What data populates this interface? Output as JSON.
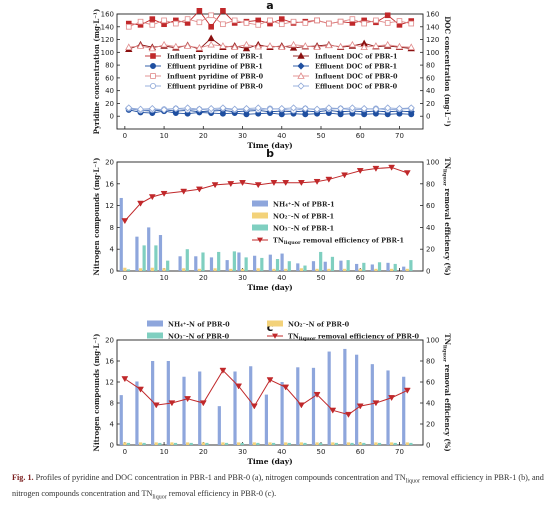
{
  "figure": {
    "caption_label": "Fig. 1.",
    "caption_text_1": "Profiles of pyridine and DOC concentration in PBR-1 and PBR-0 (a), nitrogen compounds concentration and TN",
    "caption_sub_1": "liquor",
    "caption_text_2": "removal efficiency in PBR-1 (b), and nitrogen compounds concentration and TN",
    "caption_sub_2": "liquor",
    "caption_text_3": "removal efficiency in PBR-0 (c)."
  },
  "chart_data": [
    {
      "panel": "a",
      "type": "line",
      "ylabel": "Pyridine concentration (mg·L⁻¹)",
      "y2label": "DOC concentration (mg·L⁻¹)",
      "xlabel": "Time (day)",
      "xlim": [
        -2,
        76
      ],
      "xticks": [
        0,
        10,
        20,
        30,
        40,
        50,
        60,
        70
      ],
      "ylim": [
        -20,
        160
      ],
      "yticks": [
        0,
        20,
        40,
        60,
        80,
        100,
        120,
        140,
        160
      ],
      "y2lim": [
        -20,
        160
      ],
      "y2ticks": [
        0,
        20,
        40,
        60,
        80,
        100,
        120,
        140,
        160
      ],
      "x": [
        1,
        4,
        7,
        10,
        13,
        16,
        19,
        22,
        25,
        28,
        31,
        34,
        37,
        40,
        43,
        46,
        49,
        52,
        55,
        58,
        61,
        64,
        67,
        70,
        73
      ],
      "series": [
        {
          "name": "Influent pyridine of PBR-1",
          "color": "#c0282a",
          "marker": "square",
          "filled": true,
          "axis": "left",
          "values": [
            145,
            143,
            152,
            144,
            150,
            146,
            165,
            140,
            165,
            146,
            148,
            150,
            145,
            152,
            146,
            148,
            150,
            145,
            148,
            146,
            150,
            147,
            158,
            143,
            149
          ]
        },
        {
          "name": "Influent DOC of PBR-1",
          "color": "#8b1010",
          "marker": "triangle",
          "filled": true,
          "axis": "right",
          "values": [
            105,
            112,
            108,
            110,
            107,
            111,
            105,
            122,
            108,
            110,
            106,
            112,
            108,
            110,
            107,
            109,
            110,
            112,
            108,
            110,
            114,
            109,
            110,
            108,
            106
          ]
        },
        {
          "name": "Effluent pyridine of PBR-1",
          "color": "#1f4fa0",
          "marker": "circle",
          "filled": true,
          "axis": "left",
          "values": [
            10,
            6,
            5,
            8,
            5,
            4,
            6,
            5,
            4,
            5,
            3,
            4,
            5,
            3,
            4,
            3,
            4,
            5,
            3,
            4,
            3,
            4,
            3,
            4,
            3
          ]
        },
        {
          "name": "Effluent DOC of PBR-1",
          "color": "#1f4fa0",
          "marker": "diamond",
          "filled": true,
          "axis": "right",
          "values": [
            12,
            9,
            8,
            10,
            8,
            9,
            7,
            8,
            9,
            7,
            8,
            9,
            7,
            8,
            7,
            8,
            7,
            9,
            7,
            8,
            7,
            8,
            7,
            8,
            7
          ]
        },
        {
          "name": "Influent pyridine of PBR-0",
          "color": "#e08a8a",
          "marker": "square",
          "filled": false,
          "axis": "left",
          "values": [
            140,
            148,
            143,
            150,
            145,
            152,
            147,
            158,
            144,
            150,
            146,
            143,
            150,
            144,
            148,
            146,
            150,
            145,
            148,
            152,
            145,
            150,
            146,
            149,
            145
          ]
        },
        {
          "name": "Influent DOC of PBR-0",
          "color": "#e08a8a",
          "marker": "triangle",
          "filled": false,
          "axis": "right",
          "values": [
            108,
            110,
            106,
            112,
            109,
            110,
            107,
            112,
            110,
            108,
            112,
            109,
            110,
            108,
            112,
            110,
            108,
            111,
            109,
            112,
            108,
            110,
            112,
            109,
            108
          ]
        },
        {
          "name": "Effluent pyridine of PBR-0",
          "color": "#8fa8d8",
          "marker": "circle",
          "filled": false,
          "axis": "left",
          "values": [
            12,
            9,
            10,
            11,
            12,
            10,
            11,
            9,
            12,
            10,
            11,
            10,
            12,
            11,
            9,
            12,
            10,
            11,
            12,
            10,
            11,
            12,
            10,
            11,
            12
          ]
        },
        {
          "name": "Effluent DOC of PBR-0",
          "color": "#8fa8d8",
          "marker": "diamond",
          "filled": false,
          "axis": "right",
          "values": [
            13,
            11,
            12,
            10,
            12,
            13,
            11,
            12,
            13,
            11,
            12,
            13,
            11,
            12,
            13,
            12,
            11,
            13,
            12,
            13,
            12,
            11,
            13,
            12,
            13
          ]
        }
      ]
    },
    {
      "panel": "b",
      "type": "bar",
      "ylabel": "Nitrogen compounds (mg·L⁻¹)",
      "y2label": "TN_liquor removal efficiency (%)",
      "xlabel": "Time (day)",
      "xlim": [
        -2,
        76
      ],
      "xticks": [
        0,
        10,
        20,
        30,
        40,
        50,
        60,
        70
      ],
      "ylim": [
        0,
        20
      ],
      "yticks": [
        0,
        4,
        8,
        12,
        16,
        20
      ],
      "y2lim": [
        0,
        100
      ],
      "y2ticks": [
        0,
        20,
        40,
        60,
        80,
        100
      ],
      "x": [
        0,
        4,
        7,
        10,
        15,
        19,
        23,
        27,
        30,
        34,
        38,
        41,
        45,
        49,
        52,
        56,
        60,
        64,
        68,
        72
      ],
      "series": [
        {
          "name": "NH₄⁺-N of PBR-1",
          "color": "#8ea6dc",
          "kind": "bar",
          "values": [
            13.4,
            6.3,
            8.0,
            6.6,
            2.7,
            2.7,
            2.5,
            2.0,
            3.4,
            2.8,
            3.0,
            3.2,
            1.4,
            1.8,
            1.7,
            1.9,
            1.3,
            1.2,
            1.5,
            0.8
          ]
        },
        {
          "name": "NO₂⁻-N of PBR-1",
          "color": "#f3d27a",
          "kind": "bar",
          "values": [
            0.6,
            0.5,
            0.6,
            0.5,
            0.5,
            0.4,
            0.5,
            0.4,
            0.4,
            0.5,
            0.4,
            0.4,
            0.5,
            0.4,
            0.4,
            0.4,
            0.4,
            0.4,
            0.4,
            0.4
          ]
        },
        {
          "name": "NO₃⁻-N of PBR-1",
          "color": "#7fcfc0",
          "kind": "bar",
          "values": [
            0.3,
            4.7,
            4.7,
            1.9,
            4.0,
            3.4,
            3.5,
            3.6,
            2.5,
            2.4,
            2.2,
            1.8,
            1.0,
            3.5,
            2.6,
            2.0,
            1.5,
            1.6,
            1.3,
            2.0
          ]
        },
        {
          "name": "TN_liquor removal efficiency of PBR-1",
          "color": "#c0282a",
          "kind": "line",
          "axis": "right",
          "values": [
            46,
            62,
            68,
            71,
            73,
            75,
            79,
            80,
            81,
            79,
            81,
            81,
            81,
            82,
            84,
            88,
            92,
            94,
            95,
            90
          ]
        }
      ],
      "legend": [
        "NH₄⁺-N of PBR-1",
        "NO₂⁻-N of PBR-1",
        "NO₃⁻-N of PBR-1",
        "TN_liquor removal efficiency of PBR-1"
      ]
    },
    {
      "panel": "c",
      "type": "bar",
      "ylabel": "Nitrogen compounds (mg·L⁻¹)",
      "y2label": "TN_liquor removal efficiency (%)",
      "xlabel": "Time (day)",
      "xlim": [
        -2,
        76
      ],
      "xticks": [
        0,
        10,
        20,
        30,
        40,
        50,
        60,
        70
      ],
      "ylim": [
        0,
        20
      ],
      "yticks": [
        0,
        4,
        8,
        12,
        16,
        20
      ],
      "y2lim": [
        0,
        100
      ],
      "y2ticks": [
        0,
        20,
        40,
        60,
        80,
        100
      ],
      "x": [
        0,
        4,
        8,
        12,
        16,
        20,
        25,
        29,
        33,
        37,
        41,
        45,
        49,
        53,
        57,
        60,
        64,
        68,
        72
      ],
      "series": [
        {
          "name": "NH₄⁺-N of PBR-0",
          "color": "#8ea6dc",
          "kind": "bar",
          "values": [
            9.5,
            12.1,
            16.0,
            16.0,
            13.0,
            14.0,
            7.4,
            14.0,
            15.0,
            9.6,
            12.0,
            14.8,
            14.7,
            17.8,
            18.3,
            17.2,
            15.4,
            14.2,
            13.0
          ]
        },
        {
          "name": "NO₂⁻-N of PBR-0",
          "color": "#f3d27a",
          "kind": "bar",
          "values": [
            0.5,
            0.5,
            0.5,
            0.5,
            0.5,
            0.5,
            0.5,
            0.5,
            0.5,
            0.5,
            0.5,
            0.5,
            0.5,
            0.5,
            0.5,
            0.5,
            0.5,
            0.5,
            0.5
          ]
        },
        {
          "name": "NO₃⁻-N of PBR-0",
          "color": "#7fcfc0",
          "kind": "bar",
          "values": [
            0.4,
            0.4,
            0.4,
            0.4,
            0.4,
            0.4,
            0.4,
            0.4,
            0.4,
            0.4,
            0.4,
            0.4,
            0.4,
            0.4,
            0.4,
            0.4,
            0.4,
            0.4,
            0.4
          ]
        },
        {
          "name": "TN_liquor removal efficiency of PBR-0",
          "color": "#c0282a",
          "kind": "line",
          "axis": "right",
          "values": [
            63,
            53,
            38,
            40,
            44,
            40,
            71,
            56,
            37,
            62,
            55,
            38,
            48,
            33,
            29,
            37,
            40,
            45,
            52
          ]
        }
      ],
      "legend": [
        "NH₄⁺-N of PBR-0",
        "NO₂⁻-N of PBR-0",
        "NO₃⁻-N of PBR-0",
        "TN_liquor removal efficiency of PBR-0"
      ]
    }
  ]
}
